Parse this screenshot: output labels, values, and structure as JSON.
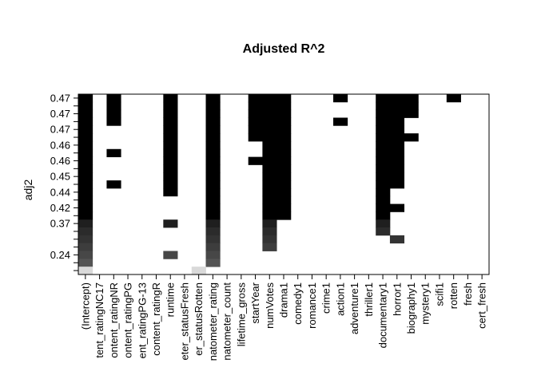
{
  "chart_data": {
    "type": "heatmap",
    "title": "Adjusted R^2",
    "ylabel": "adj2",
    "variables": [
      "(Intercept)",
      "tent_ratingNC17",
      "ontent_ratingNR",
      "ontent_ratingPG",
      "ent_ratingPG-13",
      "content_ratingR",
      "runtime",
      "eter_statusFresh",
      "er_statusRotten",
      "natometer_rating",
      "natometer_count",
      "lifetime_gross",
      "startYear",
      "numVotes",
      "drama1",
      "comedy1",
      "romance1",
      "crime1",
      "action1",
      "adventure1",
      "thriller1",
      "documentary1",
      "horror1",
      "biography1",
      "mystery1",
      "scifi1",
      "rotten",
      "fresh",
      "cert_fresh"
    ],
    "y_tick_labels": [
      "0.47",
      "0.47",
      "0.47",
      "0.46",
      "0.46",
      "0.45",
      "0.44",
      "0.42",
      "0.37",
      "0.24"
    ],
    "models": [
      {
        "adjr2": 0.47,
        "shade": 0.0,
        "vars": [
          0,
          2,
          6,
          9,
          12,
          13,
          14,
          18,
          21,
          22,
          23,
          26
        ]
      },
      {
        "adjr2": 0.47,
        "shade": 0.0,
        "vars": [
          0,
          2,
          6,
          9,
          12,
          13,
          14,
          21,
          22,
          23
        ]
      },
      {
        "adjr2": 0.47,
        "shade": 0.0,
        "vars": [
          0,
          2,
          6,
          9,
          12,
          13,
          14,
          21,
          22,
          23
        ]
      },
      {
        "adjr2": 0.47,
        "shade": 0.0,
        "vars": [
          0,
          2,
          6,
          9,
          12,
          13,
          14,
          18,
          21,
          22
        ]
      },
      {
        "adjr2": 0.47,
        "shade": 0.0,
        "vars": [
          0,
          6,
          9,
          12,
          13,
          14,
          21,
          22
        ]
      },
      {
        "adjr2": 0.47,
        "shade": 0.0,
        "vars": [
          0,
          6,
          9,
          12,
          13,
          14,
          21,
          22,
          23
        ]
      },
      {
        "adjr2": 0.47,
        "shade": 0.0,
        "vars": [
          0,
          6,
          9,
          13,
          14,
          21,
          22
        ]
      },
      {
        "adjr2": 0.47,
        "shade": 0.0,
        "vars": [
          0,
          2,
          6,
          9,
          13,
          14,
          21,
          22
        ]
      },
      {
        "adjr2": 0.46,
        "shade": 0.0,
        "vars": [
          0,
          6,
          9,
          12,
          13,
          14,
          21,
          22
        ]
      },
      {
        "adjr2": 0.46,
        "shade": 0.0,
        "vars": [
          0,
          6,
          9,
          13,
          14,
          21,
          22
        ]
      },
      {
        "adjr2": 0.46,
        "shade": 0.0,
        "vars": [
          0,
          6,
          9,
          13,
          14,
          21,
          22
        ]
      },
      {
        "adjr2": 0.46,
        "shade": 0.0,
        "vars": [
          0,
          2,
          6,
          9,
          13,
          14,
          21,
          22
        ]
      },
      {
        "adjr2": 0.46,
        "shade": 0.0,
        "vars": [
          0,
          6,
          9,
          13,
          14,
          21
        ]
      },
      {
        "adjr2": 0.45,
        "shade": 0.0,
        "vars": [
          0,
          9,
          13,
          14,
          21
        ]
      },
      {
        "adjr2": 0.45,
        "shade": 0.0,
        "vars": [
          0,
          9,
          13,
          14,
          21,
          22
        ]
      },
      {
        "adjr2": 0.45,
        "shade": 0.0,
        "vars": [
          0,
          9,
          13,
          14,
          21
        ]
      },
      {
        "adjr2": 0.44,
        "shade": 0.12,
        "vars": [
          0,
          6,
          9,
          13,
          21
        ]
      },
      {
        "adjr2": 0.43,
        "shade": 0.17,
        "vars": [
          0,
          9,
          13,
          21
        ]
      },
      {
        "adjr2": 0.42,
        "shade": 0.2,
        "vars": [
          0,
          9,
          13,
          22
        ]
      },
      {
        "adjr2": 0.4,
        "shade": 0.24,
        "vars": [
          0,
          9,
          13
        ]
      },
      {
        "adjr2": 0.37,
        "shade": 0.28,
        "vars": [
          0,
          6,
          9
        ]
      },
      {
        "adjr2": 0.33,
        "shade": 0.33,
        "vars": [
          0,
          9
        ]
      },
      {
        "adjr2": 0.24,
        "shade": 0.85,
        "vars": [
          0,
          8
        ]
      }
    ]
  }
}
